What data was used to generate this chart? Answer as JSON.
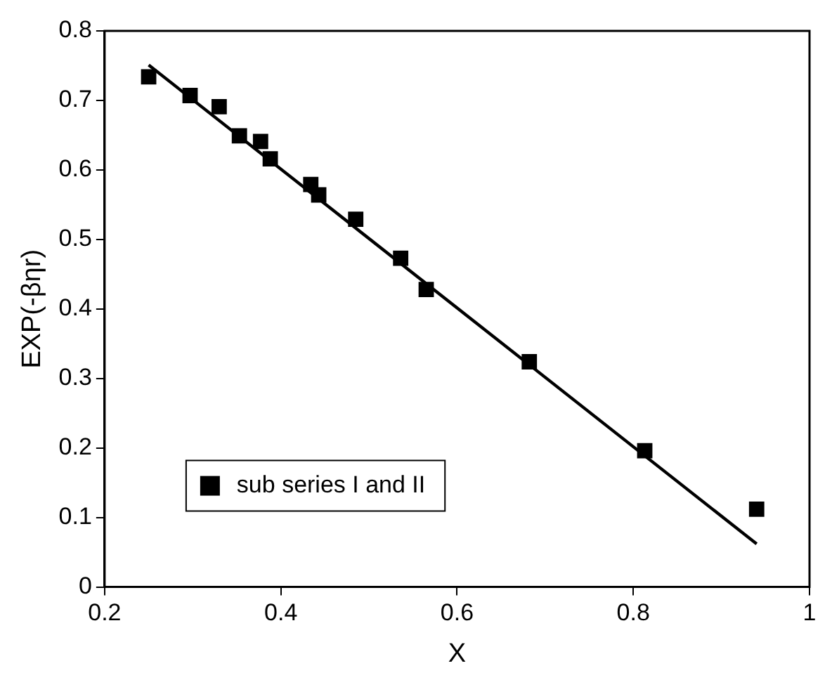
{
  "chart_data": {
    "type": "scatter",
    "xlabel": "X",
    "ylabel": "EXP(-βηr)",
    "xlim": [
      0.2,
      1
    ],
    "ylim": [
      0,
      0.8
    ],
    "xticks": [
      0.2,
      0.4,
      0.6,
      0.8,
      1
    ],
    "yticks": [
      0,
      0.1,
      0.2,
      0.3,
      0.4,
      0.5,
      0.6,
      0.7,
      0.8
    ],
    "grid": false,
    "legend": "bottom left",
    "series": [
      {
        "name": "sub series I and II",
        "type": "scatter",
        "marker": "square",
        "color": "#000000",
        "x": [
          0.25,
          0.297,
          0.33,
          0.353,
          0.377,
          0.388,
          0.434,
          0.443,
          0.485,
          0.536,
          0.565,
          0.682,
          0.813,
          0.94
        ],
        "values": [
          0.734,
          0.707,
          0.691,
          0.649,
          0.641,
          0.616,
          0.579,
          0.564,
          0.529,
          0.473,
          0.428,
          0.324,
          0.196,
          0.112
        ]
      },
      {
        "type": "line",
        "marker": "none",
        "color": "#000000",
        "line_style": "solid",
        "x": [
          0.25,
          0.94
        ],
        "values": [
          0.751,
          0.062
        ]
      }
    ]
  }
}
